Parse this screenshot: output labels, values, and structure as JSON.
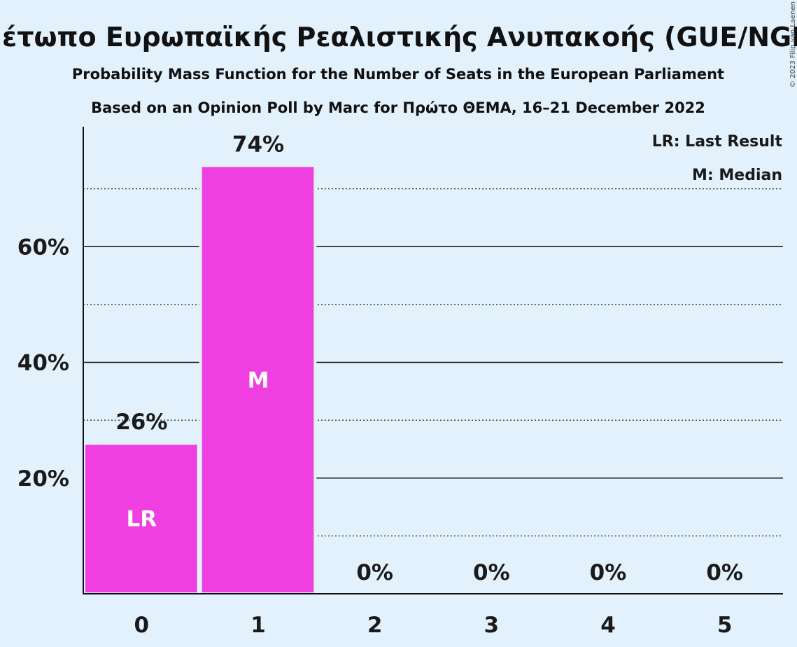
{
  "title": "Μέτωπο Ευρωπαϊκής Ρεαλιστικής Ανυπακοής (GUE/NGL)",
  "subtitle": "Probability Mass Function for the Number of Seats in the European Parliament",
  "source_line": "Based on an Opinion Poll by Marc for Πρώτο ΘΕΜΑ, 16–21 December 2022",
  "copyright": "© 2023 Filip van Laenen",
  "legend": {
    "last_result": "LR: Last Result",
    "median": "M: Median"
  },
  "colors": {
    "background": "#e3f1fd",
    "bar": "#ef3fe0",
    "text": "#1a1a1a"
  },
  "chart_data": {
    "type": "bar",
    "categories": [
      "0",
      "1",
      "2",
      "3",
      "4",
      "5"
    ],
    "values": [
      26,
      74,
      0,
      0,
      0,
      0
    ],
    "value_labels": [
      "26%",
      "74%",
      "0%",
      "0%",
      "0%",
      "0%"
    ],
    "bar_markers": [
      "LR",
      "M",
      "",
      "",
      "",
      ""
    ],
    "yticks": [
      20,
      40,
      60
    ],
    "ytick_labels": [
      "20%",
      "40%",
      "60%"
    ],
    "minor_gridlines": [
      10,
      30,
      50,
      70
    ],
    "ylim": [
      0,
      80
    ],
    "grid": true,
    "legend_position": "top-right"
  }
}
